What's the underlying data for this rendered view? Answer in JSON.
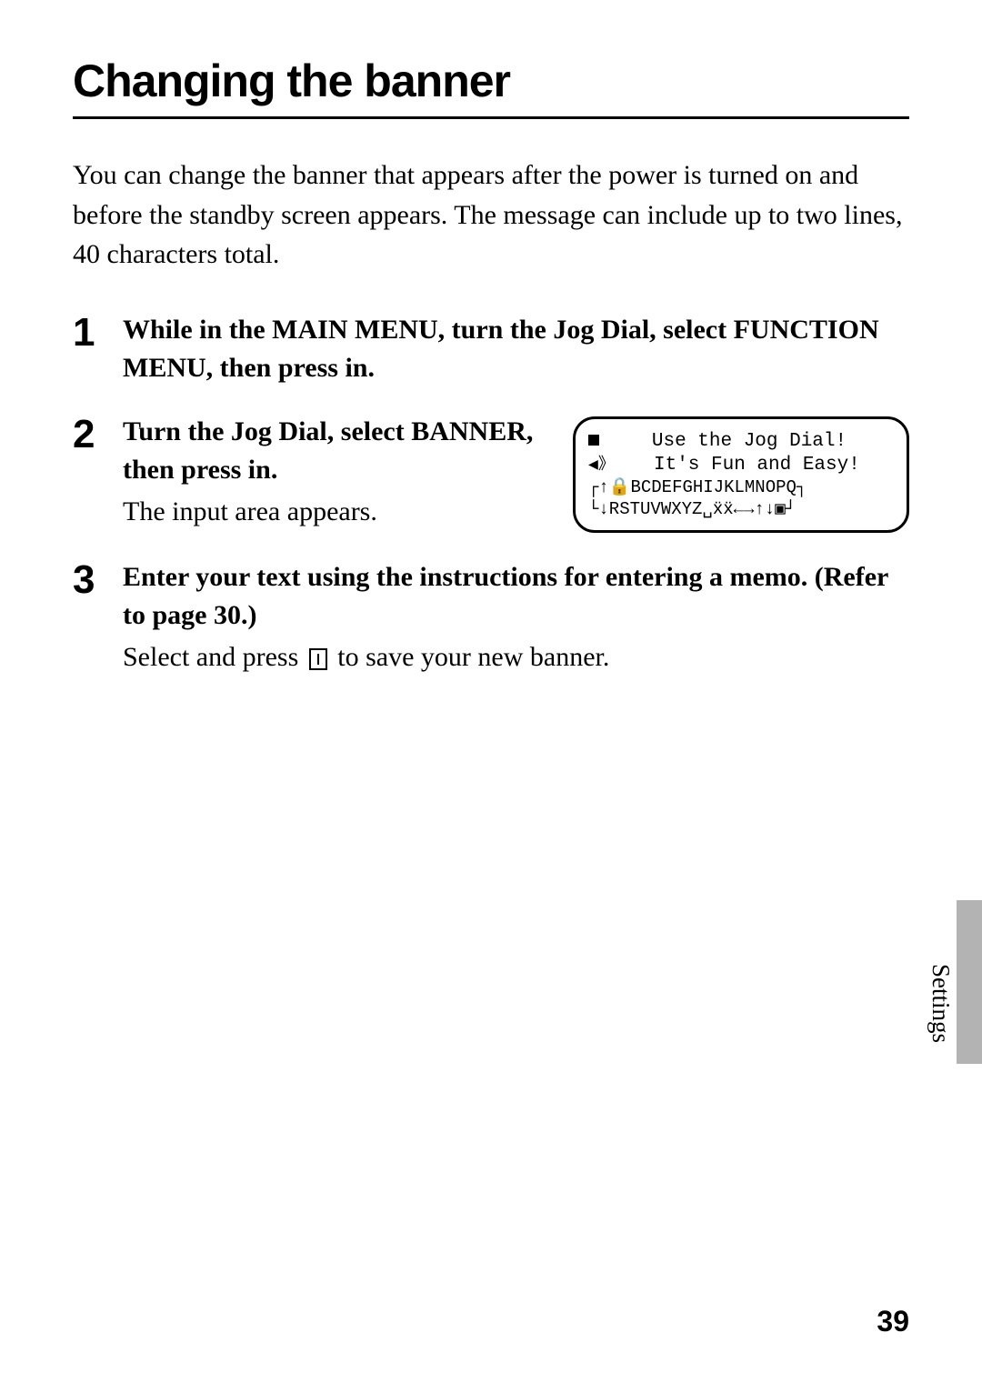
{
  "title": "Changing the banner",
  "intro": "You can change the banner that appears after the power is turned on and before the standby screen appears. The message can include up to two lines, 40 characters total.",
  "steps": [
    {
      "num": "1",
      "bold": "While in the MAIN MENU, turn the Jog Dial, select FUNCTION MENU, then press in."
    },
    {
      "num": "2",
      "bold": "Turn the Jog Dial, select BANNER, then press in.",
      "text": "The input area appears."
    },
    {
      "num": "3",
      "bold": "Enter your text using the instructions for entering a memo. (Refer to page 30.)",
      "text_before": "Select and press ",
      "text_after": " to save your new banner."
    }
  ],
  "lcd": {
    "line1": "Use the Jog Dial!",
    "line2": "It's Fun and Easy!",
    "chars1": "↑🔒BCDEFGHIJKLMNOPQ",
    "chars2": "↓RSTUVWXYZ␣ẍẍ←→↑↓▣"
  },
  "side_label": "Settings",
  "page_num": "39",
  "colors": {
    "page_bg": "#ffffff",
    "text": "#000000",
    "side_tab": "#b3b3b3"
  }
}
